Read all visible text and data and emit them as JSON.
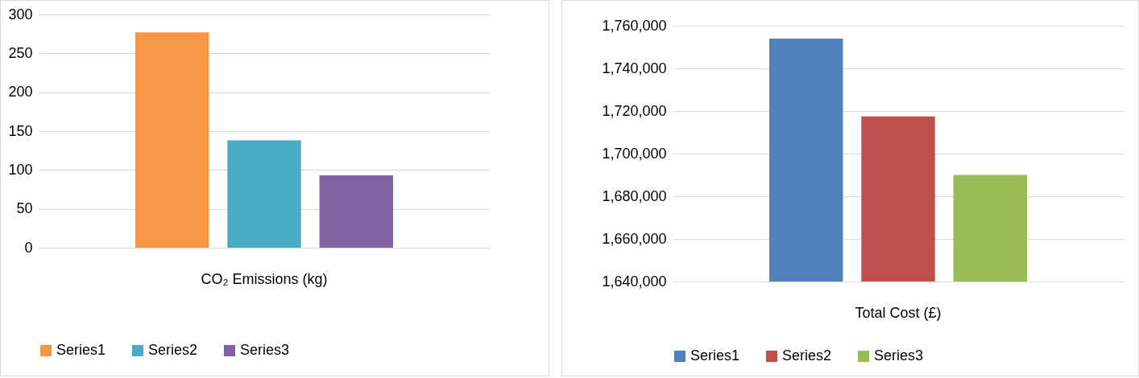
{
  "chart_data": [
    {
      "type": "bar",
      "categories": [
        "CO₂ Emissions (kg)"
      ],
      "series": [
        {
          "name": "Series1",
          "color": "#f79646",
          "values": [
            277
          ]
        },
        {
          "name": "Series2",
          "color": "#4bacc6",
          "values": [
            138
          ]
        },
        {
          "name": "Series3",
          "color": "#8064a2",
          "values": [
            93
          ]
        }
      ],
      "ylim": [
        0,
        300
      ],
      "yticks": [
        0,
        50,
        100,
        150,
        200,
        250,
        300
      ],
      "grid": "y",
      "legend": "bottom"
    },
    {
      "type": "bar",
      "categories": [
        "Total Cost (£)"
      ],
      "series": [
        {
          "name": "Series1",
          "color": "#4f81bd",
          "values": [
            1754000
          ]
        },
        {
          "name": "Series2",
          "color": "#c0504d",
          "values": [
            1717500
          ]
        },
        {
          "name": "Series3",
          "color": "#9bbb59",
          "values": [
            1690000
          ]
        }
      ],
      "ylim": [
        1640000,
        1760000
      ],
      "yticks": [
        {
          "value": 1640000,
          "label": "1,640,000"
        },
        {
          "value": 1660000,
          "label": "1,660,000"
        },
        {
          "value": 1680000,
          "label": "1,680,000"
        },
        {
          "value": 1700000,
          "label": "1,700,000"
        },
        {
          "value": 1720000,
          "label": "1,720,000"
        },
        {
          "value": 1740000,
          "label": "1,740,000"
        },
        {
          "value": 1760000,
          "label": "1,760,000"
        }
      ],
      "grid": "y",
      "legend": "bottom"
    }
  ]
}
